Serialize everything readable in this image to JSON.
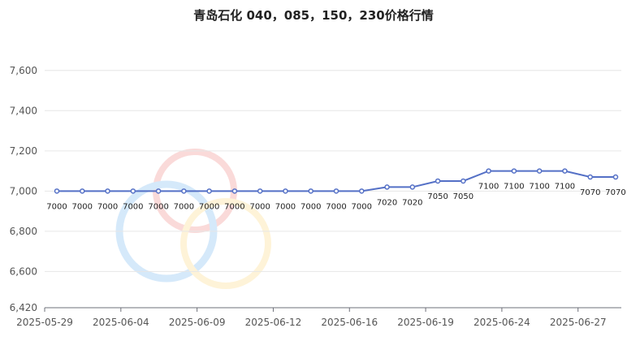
{
  "chart_data": {
    "type": "line",
    "title": "青岛石化 040，085，150，230价格行情",
    "xlabel": "",
    "ylabel": "",
    "ylim": [
      6420,
      7700
    ],
    "yticks": [
      6420,
      6600,
      6800,
      7000,
      7200,
      7400,
      7600
    ],
    "ytick_labels": [
      "6,420",
      "6,600",
      "6,800",
      "7,000",
      "7,200",
      "7,400",
      "7,600"
    ],
    "x_tick_labels": [
      "2025-05-29",
      "2025-06-04",
      "2025-06-09",
      "2025-06-12",
      "2025-06-16",
      "2025-06-19",
      "2025-06-24",
      "2025-06-27"
    ],
    "x_tick_positions": [
      0,
      3,
      6,
      9,
      12,
      15,
      18,
      21
    ],
    "grid": true,
    "legend": "none",
    "colors": {
      "line": "#5470c6",
      "grid": "#e6e6e6",
      "axis": "#6e7079"
    },
    "series": [
      {
        "values": [
          7000,
          7000,
          7000,
          7000,
          7000,
          7000,
          7000,
          7000,
          7000,
          7000,
          7000,
          7000,
          7000,
          7020,
          7020,
          7050,
          7050,
          7100,
          7100,
          7100,
          7100,
          7070,
          7070
        ],
        "labels": [
          "7000",
          "7000",
          "7000",
          "7000",
          "7000",
          "7000",
          "7000",
          "7000",
          "7000",
          "7000",
          "7000",
          "7000",
          "7000",
          "7020",
          "7020",
          "7050",
          "7050",
          "7100",
          "7100",
          "7100",
          "7100",
          "7070",
          "7070"
        ]
      }
    ]
  }
}
